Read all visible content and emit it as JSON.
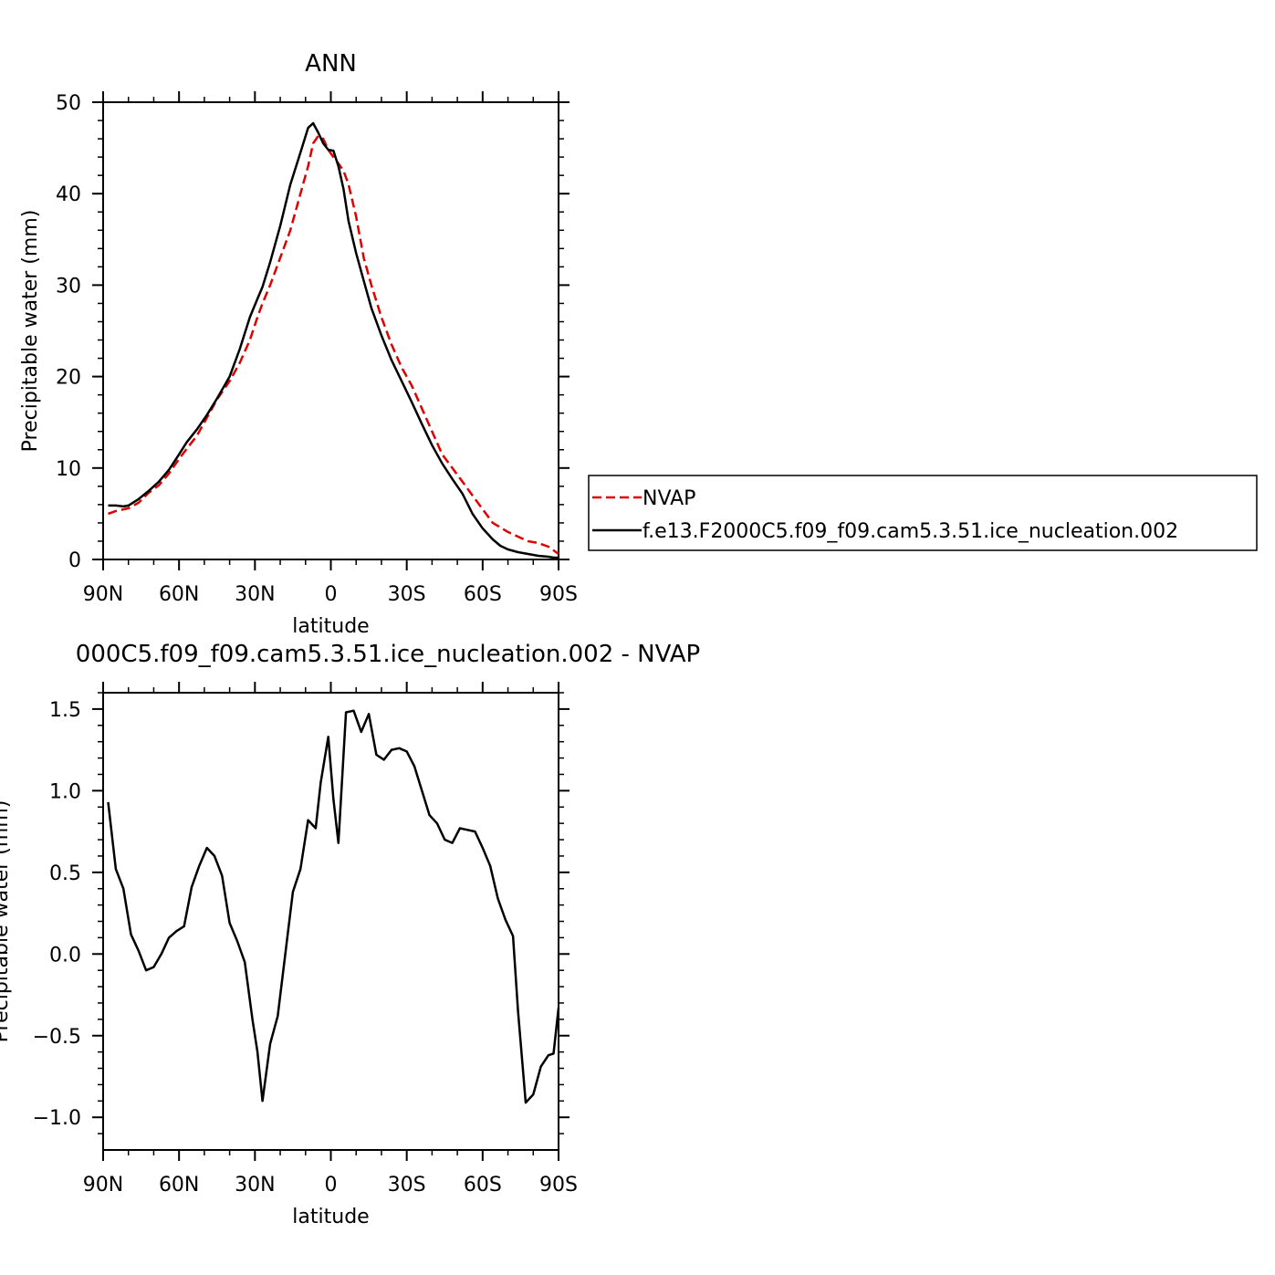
{
  "chart_data": [
    {
      "type": "line",
      "title": "ANN",
      "xlabel": "latitude",
      "ylabel": "Precipitable water (mm)",
      "xlim": [
        -90,
        90
      ],
      "ylim": [
        0,
        50
      ],
      "x_ticks": [
        {
          "value": -90,
          "label": "90N"
        },
        {
          "value": -60,
          "label": "60N"
        },
        {
          "value": -30,
          "label": "30N"
        },
        {
          "value": 0,
          "label": "0"
        },
        {
          "value": 30,
          "label": "30S"
        },
        {
          "value": 60,
          "label": "60S"
        },
        {
          "value": 90,
          "label": "90S"
        }
      ],
      "y_ticks": [
        {
          "value": 0,
          "label": "0"
        },
        {
          "value": 10,
          "label": "10"
        },
        {
          "value": 20,
          "label": "20"
        },
        {
          "value": 30,
          "label": "30"
        },
        {
          "value": 40,
          "label": "40"
        },
        {
          "value": 50,
          "label": "50"
        }
      ],
      "grid": false,
      "legend_position": "right",
      "series": [
        {
          "name": "NVAP",
          "color": "#e00000",
          "dash": "dashed",
          "x": [
            -88,
            -85,
            -80,
            -76,
            -72,
            -68,
            -64,
            -60,
            -57,
            -53,
            -49,
            -45,
            -40,
            -36,
            -32,
            -29,
            -27,
            -24,
            -20,
            -16,
            -12,
            -9,
            -7,
            -5,
            -3,
            -1,
            1,
            3,
            5,
            7,
            10,
            13,
            16,
            20,
            24,
            28,
            32,
            36,
            40,
            44,
            48,
            52,
            56,
            60,
            64,
            67,
            70,
            74,
            78,
            82,
            86,
            88,
            90
          ],
          "y": [
            5.0,
            5.3,
            5.6,
            6.2,
            7.3,
            8.1,
            9.4,
            11.0,
            12.1,
            13.5,
            15.5,
            17.5,
            19.5,
            21.5,
            24.0,
            26.5,
            28.0,
            30.0,
            33.0,
            36.0,
            40.0,
            43.0,
            45.5,
            46.3,
            46.0,
            44.8,
            44.0,
            43.3,
            42.5,
            41.0,
            37.5,
            33.0,
            30.0,
            26.5,
            23.5,
            21.0,
            19.0,
            16.5,
            14.0,
            11.5,
            10.0,
            8.5,
            7.0,
            5.5,
            4.0,
            3.5,
            3.0,
            2.5,
            2.0,
            1.8,
            1.4,
            1.0,
            0.6
          ]
        },
        {
          "name": "f.e13.F2000C5.f09_f09.cam5.3.51.ice_nucleation.002",
          "color": "#000000",
          "dash": "solid",
          "x": [
            -88,
            -85,
            -82,
            -80,
            -76,
            -72,
            -68,
            -64,
            -60,
            -57,
            -53,
            -49,
            -45,
            -40,
            -36,
            -32,
            -29,
            -27,
            -24,
            -20,
            -16,
            -12,
            -9,
            -7,
            -5,
            -3,
            -1,
            1,
            3,
            5,
            7,
            10,
            13,
            16,
            20,
            24,
            28,
            32,
            36,
            40,
            44,
            48,
            52,
            56,
            60,
            64,
            67,
            70,
            74,
            78,
            82,
            86,
            88,
            90
          ],
          "y": [
            5.9,
            5.9,
            5.8,
            5.9,
            6.6,
            7.5,
            8.5,
            9.8,
            11.5,
            12.8,
            14.2,
            15.8,
            17.6,
            20.0,
            23.0,
            26.5,
            28.5,
            29.8,
            32.5,
            36.5,
            41.0,
            44.5,
            47.2,
            47.7,
            46.7,
            45.5,
            44.8,
            44.7,
            43.0,
            40.5,
            37.0,
            33.5,
            30.5,
            27.5,
            24.5,
            21.8,
            19.5,
            17.2,
            14.8,
            12.5,
            10.5,
            8.8,
            7.2,
            5.0,
            3.4,
            2.2,
            1.5,
            1.1,
            0.8,
            0.6,
            0.4,
            0.3,
            0.2,
            0.2
          ]
        }
      ]
    },
    {
      "type": "line",
      "title": "000C5.f09_f09.cam5.3.51.ice_nucleation.002 - NVAP",
      "xlabel": "latitude",
      "ylabel": "Precipitable water (mm)",
      "xlim": [
        -90,
        90
      ],
      "ylim": [
        -1.2,
        1.6
      ],
      "x_ticks": [
        {
          "value": -90,
          "label": "90N"
        },
        {
          "value": -60,
          "label": "60N"
        },
        {
          "value": -30,
          "label": "30N"
        },
        {
          "value": 0,
          "label": "0"
        },
        {
          "value": 30,
          "label": "30S"
        },
        {
          "value": 60,
          "label": "60S"
        },
        {
          "value": 90,
          "label": "90S"
        }
      ],
      "y_ticks": [
        {
          "value": -1.0,
          "label": "−1.0"
        },
        {
          "value": -0.5,
          "label": "−0.5"
        },
        {
          "value": 0.0,
          "label": "0.0"
        },
        {
          "value": 0.5,
          "label": "0.5"
        },
        {
          "value": 1.0,
          "label": "1.0"
        },
        {
          "value": 1.5,
          "label": "1.5"
        }
      ],
      "grid": false,
      "series": [
        {
          "color": "#000000",
          "dash": "solid",
          "x": [
            -88,
            -85,
            -82,
            -79,
            -76,
            -73,
            -70,
            -67,
            -64,
            -61,
            -58,
            -55,
            -52,
            -49,
            -46,
            -43,
            -40,
            -37,
            -34,
            -31,
            -29,
            -27,
            -24,
            -21,
            -18,
            -15,
            -12,
            -9,
            -6,
            -4,
            -1,
            1,
            3,
            6,
            9,
            12,
            15,
            18,
            21,
            24,
            27,
            30,
            33,
            36,
            39,
            42,
            45,
            48,
            51,
            54,
            57,
            60,
            63,
            66,
            69,
            72,
            74,
            77,
            80,
            83,
            86,
            88,
            90
          ],
          "y": [
            0.93,
            0.52,
            0.4,
            0.12,
            0.02,
            -0.1,
            -0.08,
            0.0,
            0.1,
            0.14,
            0.17,
            0.41,
            0.54,
            0.65,
            0.6,
            0.48,
            0.19,
            0.08,
            -0.05,
            -0.4,
            -0.6,
            -0.9,
            -0.55,
            -0.38,
            0.0,
            0.38,
            0.52,
            0.82,
            0.77,
            1.05,
            1.33,
            0.95,
            0.68,
            1.48,
            1.49,
            1.36,
            1.47,
            1.22,
            1.19,
            1.25,
            1.26,
            1.24,
            1.15,
            1.0,
            0.85,
            0.8,
            0.7,
            0.68,
            0.77,
            0.76,
            0.75,
            0.65,
            0.54,
            0.34,
            0.21,
            0.11,
            -0.35,
            -0.91,
            -0.86,
            -0.69,
            -0.62,
            -0.61,
            -0.33
          ]
        }
      ]
    }
  ]
}
